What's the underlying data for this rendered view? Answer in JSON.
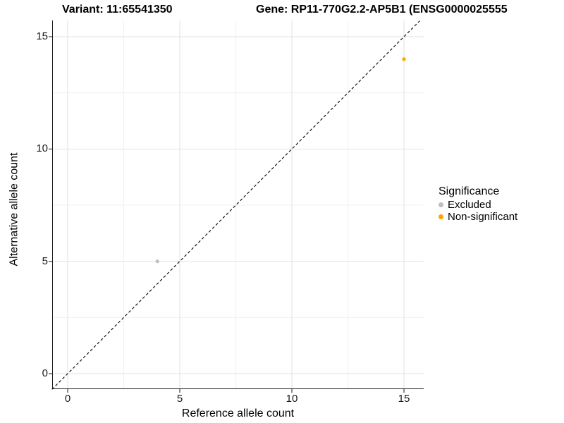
{
  "titles": {
    "variant": "Variant: 11:65541350",
    "gene": "Gene: RP11-770G2.2-AP5B1 (ENSG0000025555"
  },
  "chart_data": {
    "type": "scatter",
    "xlabel": "Reference allele count",
    "ylabel": "Alternative allele count",
    "xlim": [
      -0.7,
      15.9
    ],
    "ylim": [
      -0.7,
      15.7
    ],
    "x_ticks": [
      0,
      5,
      10,
      15
    ],
    "y_ticks": [
      0,
      5,
      10,
      15
    ],
    "x_minor_ticks": [
      2.5,
      7.5,
      12.5
    ],
    "y_minor_ticks": [
      2.5,
      7.5,
      12.5
    ],
    "grid": true,
    "background": "#ffffff",
    "identity_line": {
      "style": "dashed",
      "color": "#000000",
      "equation": "y = x"
    },
    "legend": {
      "title": "Significance",
      "position": "right",
      "items": [
        {
          "label": "Excluded",
          "color": "#BEBEBE"
        },
        {
          "label": "Non-significant",
          "color": "#FFA500"
        }
      ]
    },
    "series": [
      {
        "name": "Excluded",
        "color": "#BEBEBE",
        "points": [
          {
            "x": 4,
            "y": 5
          }
        ]
      },
      {
        "name": "Non-significant",
        "color": "#FFA500",
        "points": [
          {
            "x": 15,
            "y": 14
          }
        ]
      }
    ]
  },
  "colors": {
    "excluded": "#BEBEBE",
    "non_significant": "#FFA500",
    "identity_line": "#000000",
    "major_grid": "#e2e2e2",
    "minor_grid": "#f0f0f0",
    "axis": "#1a1a1a"
  }
}
